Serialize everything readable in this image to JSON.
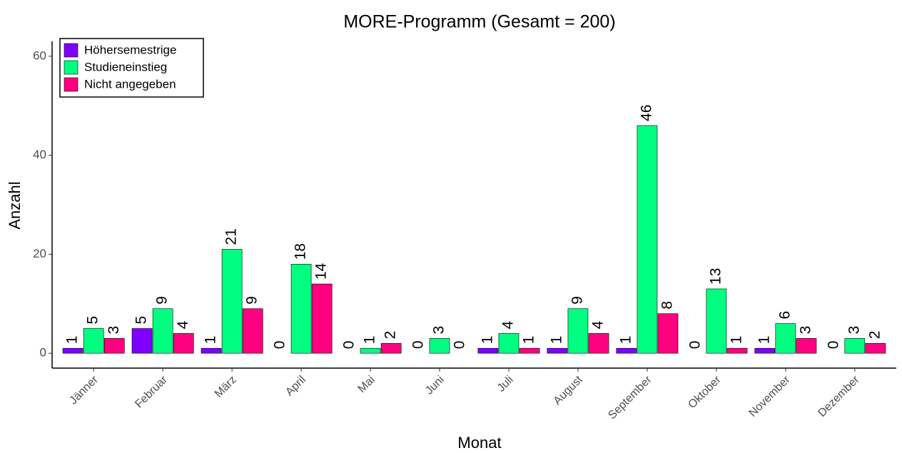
{
  "chart_data": {
    "type": "bar",
    "title": "MORE-Programm (Gesamt = 200)",
    "xlabel": "Monat",
    "ylabel": "Anzahl",
    "categories": [
      "Jänner",
      "Februar",
      "März",
      "April",
      "Mai",
      "Juni",
      "Juli",
      "August",
      "September",
      "Oktober",
      "November",
      "Dezember"
    ],
    "series": [
      {
        "name": "Höhersemestrige",
        "color": "#7f00ff",
        "values": [
          1,
          5,
          1,
          0,
          0,
          0,
          1,
          1,
          1,
          0,
          1,
          0
        ]
      },
      {
        "name": "Studieneinstieg",
        "color": "#00ff80",
        "values": [
          5,
          9,
          21,
          18,
          1,
          3,
          4,
          9,
          46,
          13,
          6,
          3
        ]
      },
      {
        "name": "Nicht angegeben",
        "color": "#ff0080",
        "values": [
          3,
          4,
          9,
          14,
          2,
          0,
          1,
          4,
          8,
          1,
          3,
          2
        ]
      }
    ],
    "ylim": [
      -3,
      63
    ],
    "yticks": [
      0,
      20,
      40,
      60
    ],
    "grid": false,
    "legend": "top-left"
  }
}
